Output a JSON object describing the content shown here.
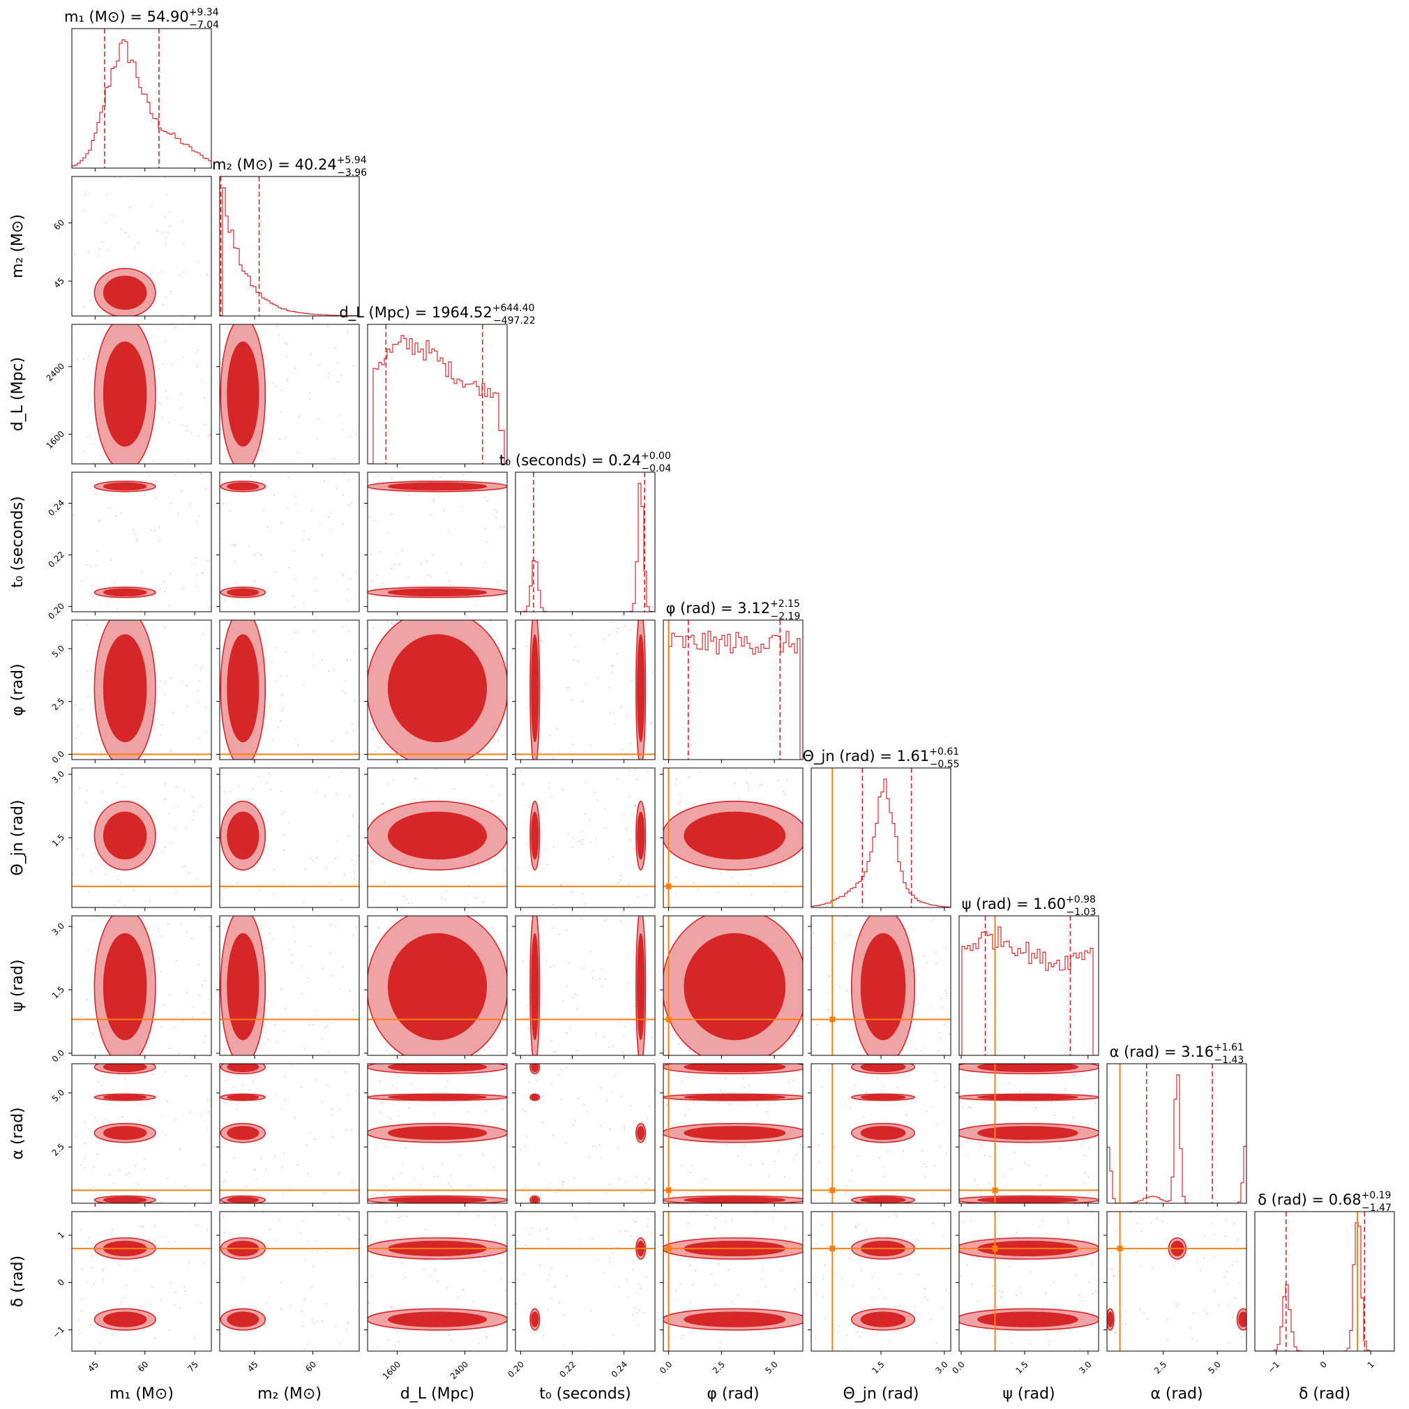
{
  "chart_data": {
    "type": "corner",
    "colors": {
      "contour_fill": "#d62728",
      "contour_light": "#f0a3a5",
      "histogram": "#d62728",
      "quantile_line": "#d62728",
      "truth_line": "#ff7f0e"
    },
    "parameters": [
      {
        "name": "m1",
        "label": "m₁ (M⊙)",
        "title": "m₁ (M⊙) = 54.90",
        "median": 54.9,
        "plus": "+9.34",
        "minus": "−7.04",
        "range": [
          38,
          80
        ],
        "ticks": [
          45,
          60,
          75
        ],
        "tick_labels": [
          "45",
          "60",
          "75"
        ],
        "quantiles": [
          47.86,
          64.24
        ],
        "truth": null
      },
      {
        "name": "m2",
        "label": "m₂ (M⊙)",
        "title": "m₂ (M⊙) = 40.24",
        "median": 40.24,
        "plus": "+5.94",
        "minus": "−3.96",
        "range": [
          36,
          72
        ],
        "ticks": [
          45,
          60
        ],
        "tick_labels": [
          "45",
          "60"
        ],
        "quantiles": [
          36.28,
          46.18
        ],
        "truth": null
      },
      {
        "name": "dL",
        "label": "d_L (Mpc)",
        "title": "d_L (Mpc) = 1964.52",
        "median": 1964.52,
        "plus": "+644.40",
        "minus": "−497.22",
        "range": [
          1250,
          2900
        ],
        "ticks": [
          1600,
          2400
        ],
        "tick_labels": [
          "1600",
          "2400"
        ],
        "quantiles": [
          1467.3,
          2608.92
        ],
        "truth": null
      },
      {
        "name": "t0",
        "label": "t₀ (seconds)",
        "title": "t₀ (seconds) = 0.24",
        "median": 0.24,
        "plus": "+0.00",
        "minus": "−0.04",
        "range": [
          0.198,
          0.252
        ],
        "ticks": [
          0.2,
          0.22,
          0.24
        ],
        "tick_labels": [
          "0.20",
          "0.22",
          "0.24"
        ],
        "quantiles": [
          0.205,
          0.248
        ],
        "truth": null
      },
      {
        "name": "phi",
        "label": "φ (rad)",
        "title": "φ (rad) = 3.12",
        "median": 3.12,
        "plus": "+2.15",
        "minus": "−2.19",
        "range": [
          -0.25,
          6.35
        ],
        "ticks": [
          0.0,
          2.5,
          5.0
        ],
        "tick_labels": [
          "0.0",
          "2.5",
          "5.0"
        ],
        "quantiles": [
          0.93,
          5.27
        ],
        "truth": 0.0
      },
      {
        "name": "theta_jn",
        "label": "Θ_jn (rad)",
        "title": "Θ_jn (rad) = 1.61",
        "median": 1.61,
        "plus": "+0.61",
        "minus": "−0.55",
        "range": [
          -0.15,
          3.15
        ],
        "ticks": [
          1.5,
          3.0
        ],
        "tick_labels": [
          "1.5",
          "3.0"
        ],
        "quantiles": [
          1.06,
          2.22
        ],
        "truth": 0.35
      },
      {
        "name": "psi",
        "label": "ψ (rad)",
        "title": "ψ (rad) = 1.60",
        "median": 1.6,
        "plus": "+0.98",
        "minus": "−1.03",
        "range": [
          -0.05,
          3.25
        ],
        "ticks": [
          0.0,
          1.5,
          3.0
        ],
        "tick_labels": [
          "0.0",
          "1.5",
          "3.0"
        ],
        "quantiles": [
          0.57,
          2.58
        ],
        "truth": 0.8
      },
      {
        "name": "alpha",
        "label": "α (rad)",
        "title": "α (rad) = 3.16",
        "median": 3.16,
        "plus": "+1.61",
        "minus": "−1.43",
        "range": [
          -0.1,
          6.35
        ],
        "ticks": [
          2.5,
          5.0
        ],
        "tick_labels": [
          "2.5",
          "5.0"
        ],
        "quantiles": [
          1.73,
          4.77
        ],
        "truth": 0.5
      },
      {
        "name": "delta",
        "label": "δ (rad)",
        "title": "δ (rad) = 0.68",
        "median": 0.68,
        "plus": "+0.19",
        "minus": "−1.47",
        "range": [
          -1.45,
          1.5
        ],
        "ticks": [
          -1,
          0,
          1
        ],
        "tick_labels": [
          "−1",
          "0",
          "1"
        ],
        "quantiles": [
          -0.79,
          0.87
        ],
        "truth": 0.72
      }
    ]
  }
}
